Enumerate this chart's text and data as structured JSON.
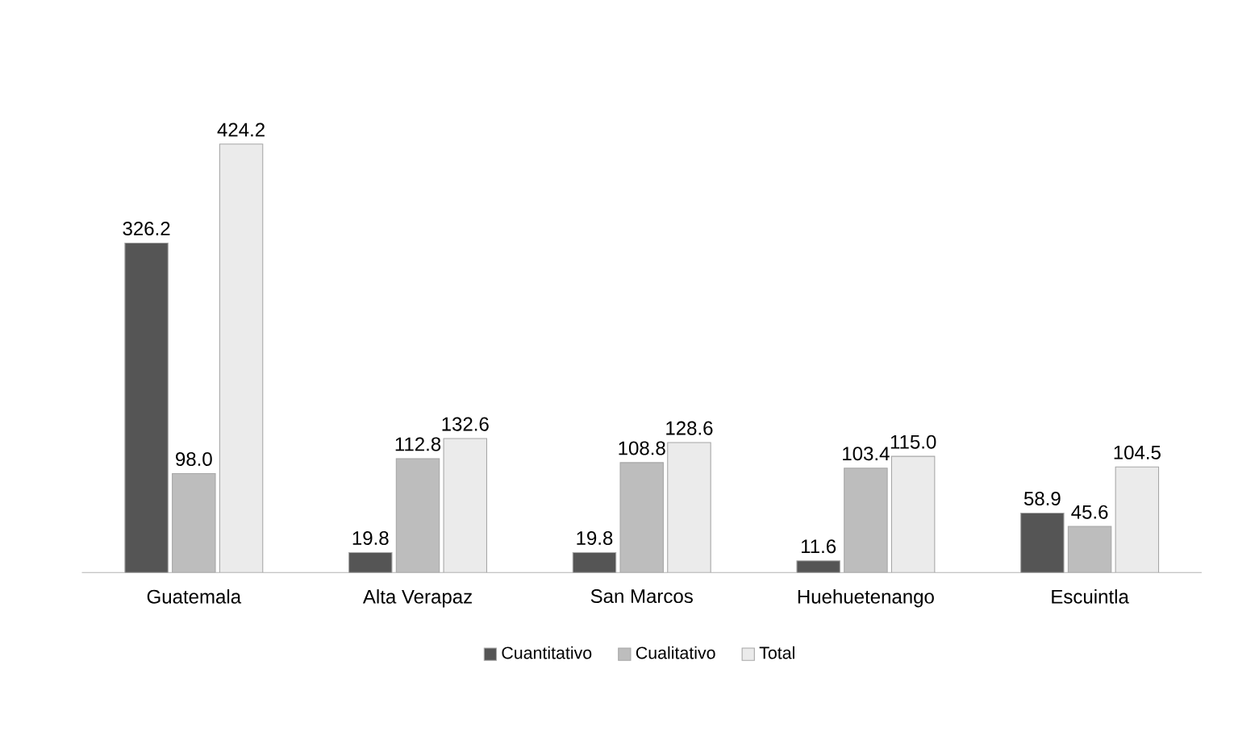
{
  "chart_data": {
    "type": "bar",
    "categories": [
      "Guatemala",
      "Alta Verapaz",
      "San Marcos",
      "Huehuetenango",
      "Escuintla"
    ],
    "series": [
      {
        "name": "Cuantitativo",
        "color": "#555555",
        "values": [
          326.2,
          19.8,
          19.8,
          11.6,
          58.9
        ],
        "value_labels": [
          "326.2",
          "19.8",
          "19.8",
          "11.6",
          "58.9"
        ]
      },
      {
        "name": "Cualitativo",
        "color": "#bdbdbd",
        "values": [
          98.0,
          112.8,
          108.8,
          103.4,
          45.6
        ],
        "value_labels": [
          "98.0",
          "112.8",
          "108.8",
          "103.4",
          "45.6"
        ]
      },
      {
        "name": "Total",
        "color": "#ebebeb",
        "values": [
          424.2,
          132.6,
          128.6,
          115.0,
          104.5
        ],
        "value_labels": [
          "424.2",
          "132.6",
          "128.6",
          "115.0",
          "104.5"
        ]
      }
    ],
    "legend": "bottom"
  }
}
